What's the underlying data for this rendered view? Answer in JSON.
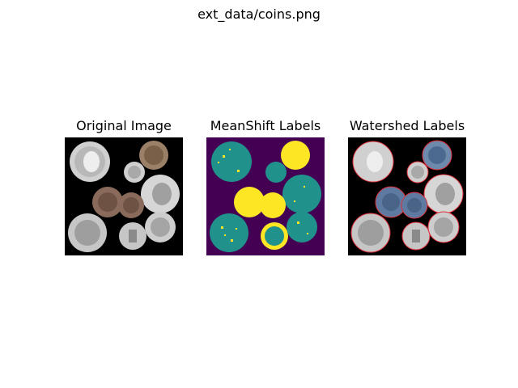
{
  "figure": {
    "suptitle": "ext_data/coins.png"
  },
  "panels": [
    {
      "title": "Original Image"
    },
    {
      "title": "MeanShift Labels"
    },
    {
      "title": "Watershed Labels"
    }
  ],
  "colors": {
    "background": "#ffffff",
    "image_background": "#000000",
    "meanshift_background": "#440154",
    "meanshift_teal": "#21918c",
    "meanshift_yellow": "#fde725",
    "coin_silver": "#c8c8c8",
    "coin_copper": "#8a6a5a",
    "coin_blue": "#5f7aa0",
    "boundary_red": "#e0303a"
  }
}
